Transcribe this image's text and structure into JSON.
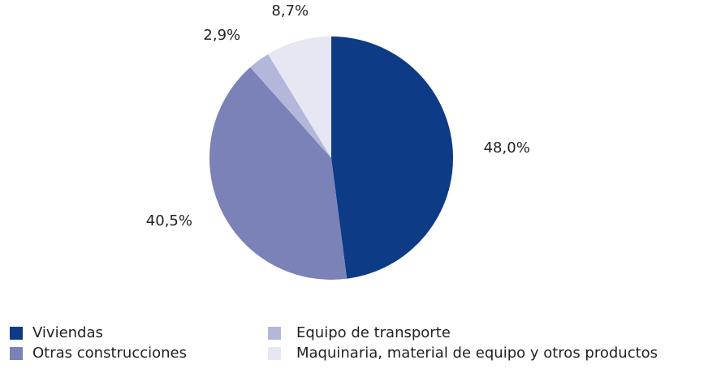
{
  "chart_data": {
    "type": "pie",
    "categories": [
      "Viviendas",
      "Otras construcciones",
      "Equipo de transporte",
      "Maquinaria, material de equipo y otros productos"
    ],
    "values": [
      48.0,
      40.5,
      2.9,
      8.7
    ],
    "value_labels": [
      "48,0%",
      "40,5%",
      "2,9%",
      "8,7%"
    ],
    "colors": [
      "#0d3b85",
      "#7a82b8",
      "#b3b7da",
      "#e6e7f3"
    ]
  }
}
